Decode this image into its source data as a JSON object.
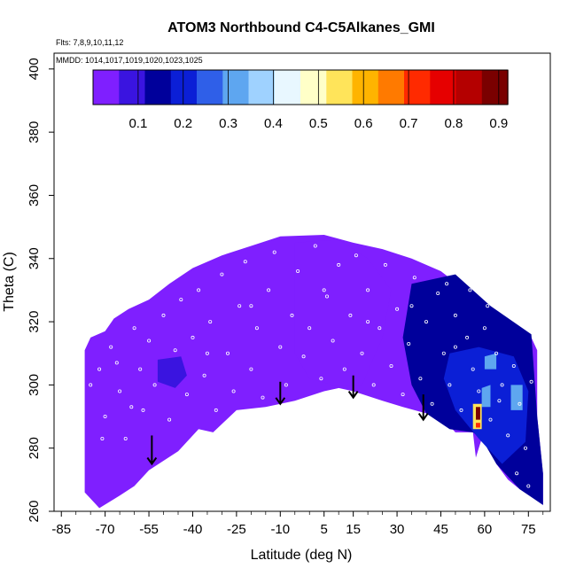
{
  "chart_data": {
    "type": "heatmap",
    "title": "ATOM3 Northbound C4-C5Alkanes_GMI",
    "flights_label": "Flts: 7,8,9,10,11,12",
    "dates_label": "MMDD: 1014,1017,1019,1020,1023,1025",
    "xlabel": "Latitude (deg N)",
    "ylabel": "Theta (C)",
    "xlim": [
      -87.5,
      82.5
    ],
    "ylim": [
      260,
      405
    ],
    "x_ticks": [
      -85,
      -70,
      -55,
      -40,
      -25,
      -10,
      5,
      15,
      30,
      45,
      60,
      75
    ],
    "x_tick_labels": [
      "-85",
      "-70",
      "-55",
      "-40",
      "-25",
      "-10",
      "5",
      "15",
      "30",
      "45",
      "60",
      "75"
    ],
    "y_ticks": [
      260,
      280,
      300,
      320,
      340,
      360,
      380,
      400
    ],
    "y_tick_labels": [
      "260",
      "280",
      "300",
      "320",
      "340",
      "360",
      "380",
      "400"
    ],
    "colorbar": {
      "range": [
        0,
        0.92
      ],
      "ticks": [
        0.1,
        0.2,
        0.3,
        0.4,
        0.5,
        0.6,
        0.7,
        0.8,
        0.9
      ],
      "tick_labels": [
        "0.1",
        "0.2",
        "0.3",
        "0.4",
        "0.5",
        "0.6",
        "0.7",
        "0.8",
        "0.9"
      ],
      "colors": [
        "#7f1fff",
        "#3a14e0",
        "#00009b",
        "#0b1fd6",
        "#2f5fe8",
        "#5ea6f0",
        "#9fd2ff",
        "#e8f7ff",
        "#ffffc8",
        "#ffe45a",
        "#ffb400",
        "#ff7a00",
        "#ff2a00",
        "#e60000",
        "#b40000",
        "#7a0000"
      ]
    },
    "field_upper_boundary": [
      [
        -77,
        311
      ],
      [
        -75,
        315
      ],
      [
        -70,
        317
      ],
      [
        -67,
        321
      ],
      [
        -62,
        324
      ],
      [
        -55,
        327
      ],
      [
        -48,
        332
      ],
      [
        -40,
        337
      ],
      [
        -30,
        341
      ],
      [
        -20,
        344
      ],
      [
        -10,
        347
      ],
      [
        5,
        347.5
      ],
      [
        15,
        345
      ],
      [
        25,
        343
      ],
      [
        35,
        340
      ],
      [
        45,
        336
      ],
      [
        52,
        331
      ],
      [
        56,
        326
      ],
      [
        64,
        322
      ],
      [
        70,
        318
      ],
      [
        76,
        315
      ],
      [
        78,
        311
      ],
      [
        78,
        290
      ],
      [
        80,
        272
      ],
      [
        80,
        262
      ],
      [
        77,
        264
      ],
      [
        72,
        267
      ],
      [
        68,
        270
      ],
      [
        64,
        275
      ],
      [
        61,
        281
      ],
      [
        59,
        283
      ],
      [
        57,
        277
      ],
      [
        56,
        285
      ],
      [
        50,
        285
      ],
      [
        45,
        290
      ],
      [
        40,
        291
      ],
      [
        32,
        293
      ],
      [
        25,
        295
      ],
      [
        15,
        298
      ],
      [
        10,
        299
      ],
      [
        5,
        298
      ],
      [
        -5,
        295
      ],
      [
        -15,
        293
      ],
      [
        -25,
        292
      ],
      [
        -33,
        285
      ],
      [
        -38,
        286
      ],
      [
        -45,
        279
      ],
      [
        -55,
        273
      ],
      [
        -60,
        268
      ],
      [
        -65,
        265
      ],
      [
        -72,
        261
      ],
      [
        -74,
        263
      ],
      [
        -77,
        266
      ]
    ],
    "regions": [
      {
        "label": "background",
        "value": 0.02,
        "outline": [
          [
            -77,
            311
          ],
          [
            -75,
            315
          ],
          [
            -70,
            317
          ],
          [
            -67,
            321
          ],
          [
            -62,
            324
          ],
          [
            -55,
            327
          ],
          [
            -48,
            332
          ],
          [
            -40,
            337
          ],
          [
            -30,
            341
          ],
          [
            -20,
            344
          ],
          [
            -10,
            347
          ],
          [
            5,
            347.5
          ],
          [
            15,
            345
          ],
          [
            25,
            343
          ],
          [
            35,
            340
          ],
          [
            45,
            336
          ],
          [
            52,
            331
          ],
          [
            56,
            326
          ],
          [
            64,
            322
          ],
          [
            70,
            318
          ],
          [
            76,
            315
          ],
          [
            78,
            311
          ],
          [
            78,
            290
          ],
          [
            80,
            272
          ],
          [
            80,
            262
          ],
          [
            77,
            264
          ],
          [
            72,
            267
          ],
          [
            68,
            270
          ],
          [
            64,
            275
          ],
          [
            61,
            281
          ],
          [
            59,
            283
          ],
          [
            57,
            277
          ],
          [
            56,
            285
          ],
          [
            50,
            285
          ],
          [
            45,
            290
          ],
          [
            40,
            291
          ],
          [
            32,
            293
          ],
          [
            25,
            295
          ],
          [
            15,
            298
          ],
          [
            10,
            299
          ],
          [
            5,
            298
          ],
          [
            -5,
            295
          ],
          [
            -15,
            293
          ],
          [
            -25,
            292
          ],
          [
            -33,
            285
          ],
          [
            -38,
            286
          ],
          [
            -45,
            279
          ],
          [
            -55,
            273
          ],
          [
            -60,
            268
          ],
          [
            -65,
            265
          ],
          [
            -72,
            261
          ],
          [
            -74,
            263
          ],
          [
            -77,
            266
          ]
        ]
      },
      {
        "label": "center-dark-band",
        "value": 0.05,
        "outline": [
          [
            -5,
            345
          ],
          [
            10,
            346
          ],
          [
            20,
            340
          ],
          [
            28,
            330
          ],
          [
            25,
            315
          ],
          [
            18,
            300
          ],
          [
            8,
            300
          ],
          [
            0,
            302
          ],
          [
            -5,
            310
          ]
        ]
      },
      {
        "label": "south-patch",
        "value": 0.06,
        "outline": [
          [
            -52,
            308
          ],
          [
            -44,
            309
          ],
          [
            -42,
            303
          ],
          [
            -46,
            299
          ],
          [
            -52,
            301
          ]
        ]
      },
      {
        "label": "east-blue",
        "value": 0.12,
        "outline": [
          [
            35,
            332
          ],
          [
            50,
            335
          ],
          [
            62,
            325
          ],
          [
            76,
            316
          ],
          [
            78,
            290
          ],
          [
            80,
            272
          ],
          [
            80,
            262
          ],
          [
            72,
            267
          ],
          [
            64,
            275
          ],
          [
            59,
            283
          ],
          [
            56,
            285
          ],
          [
            48,
            286
          ],
          [
            40,
            291
          ],
          [
            35,
            300
          ],
          [
            32,
            315
          ]
        ]
      },
      {
        "label": "east-bright-blue",
        "value": 0.22,
        "outline": [
          [
            48,
            310
          ],
          [
            58,
            312
          ],
          [
            70,
            309
          ],
          [
            75,
            298
          ],
          [
            74,
            282
          ],
          [
            66,
            275
          ],
          [
            58,
            283
          ],
          [
            50,
            292
          ],
          [
            46,
            302
          ]
        ]
      },
      {
        "label": "east-light-1",
        "value": 0.32,
        "outline": [
          [
            60,
            309
          ],
          [
            64,
            310
          ],
          [
            64,
            305
          ],
          [
            60,
            305
          ]
        ]
      },
      {
        "label": "east-light-2",
        "value": 0.34,
        "outline": [
          [
            59,
            299
          ],
          [
            62,
            300
          ],
          [
            62,
            293
          ],
          [
            59,
            293
          ]
        ]
      },
      {
        "label": "east-light-3",
        "value": 0.3,
        "outline": [
          [
            69,
            300
          ],
          [
            73,
            300
          ],
          [
            73,
            292
          ],
          [
            69,
            292
          ]
        ]
      },
      {
        "label": "hotspot-yellow",
        "value": 0.55,
        "outline": [
          [
            56,
            294
          ],
          [
            59,
            294
          ],
          [
            59,
            286
          ],
          [
            56,
            286
          ]
        ]
      },
      {
        "label": "hotspot-red",
        "value": 0.88,
        "outline": [
          [
            57,
            293
          ],
          [
            58.5,
            293
          ],
          [
            58.5,
            289
          ],
          [
            57,
            289
          ]
        ]
      },
      {
        "label": "hotspot-orange",
        "value": 0.72,
        "outline": [
          [
            57,
            288
          ],
          [
            58.5,
            288
          ],
          [
            58.5,
            286.5
          ],
          [
            57,
            286.5
          ]
        ]
      }
    ],
    "arrows": [
      [
        -54,
        284,
        275
      ],
      [
        -10,
        301,
        294
      ],
      [
        15,
        303,
        296
      ],
      [
        39,
        297,
        289
      ]
    ],
    "sample_points": [
      [
        -72,
        305
      ],
      [
        -70,
        290
      ],
      [
        -68,
        312
      ],
      [
        -65,
        298
      ],
      [
        -63,
        283
      ],
      [
        -60,
        318
      ],
      [
        -58,
        305
      ],
      [
        -57,
        292
      ],
      [
        -55,
        314
      ],
      [
        -53,
        300
      ],
      [
        -50,
        322
      ],
      [
        -48,
        289
      ],
      [
        -46,
        311
      ],
      [
        -44,
        327
      ],
      [
        -42,
        297
      ],
      [
        -40,
        315
      ],
      [
        -38,
        330
      ],
      [
        -36,
        303
      ],
      [
        -34,
        320
      ],
      [
        -32,
        292
      ],
      [
        -30,
        335
      ],
      [
        -28,
        310
      ],
      [
        -26,
        298
      ],
      [
        -24,
        325
      ],
      [
        -22,
        339
      ],
      [
        -20,
        305
      ],
      [
        -18,
        318
      ],
      [
        -16,
        296
      ],
      [
        -14,
        330
      ],
      [
        -12,
        342
      ],
      [
        -10,
        312
      ],
      [
        -8,
        300
      ],
      [
        -6,
        322
      ],
      [
        -4,
        336
      ],
      [
        -2,
        309
      ],
      [
        0,
        318
      ],
      [
        2,
        344
      ],
      [
        4,
        302
      ],
      [
        6,
        328
      ],
      [
        8,
        314
      ],
      [
        10,
        338
      ],
      [
        12,
        305
      ],
      [
        14,
        322
      ],
      [
        16,
        341
      ],
      [
        18,
        310
      ],
      [
        20,
        330
      ],
      [
        22,
        300
      ],
      [
        24,
        318
      ],
      [
        26,
        338
      ],
      [
        28,
        306
      ],
      [
        30,
        324
      ],
      [
        32,
        297
      ],
      [
        34,
        313
      ],
      [
        36,
        334
      ],
      [
        38,
        302
      ],
      [
        40,
        320
      ],
      [
        42,
        294
      ],
      [
        44,
        329
      ],
      [
        46,
        310
      ],
      [
        48,
        300
      ],
      [
        50,
        322
      ],
      [
        52,
        292
      ],
      [
        54,
        315
      ],
      [
        56,
        305
      ],
      [
        58,
        298
      ],
      [
        60,
        318
      ],
      [
        62,
        289
      ],
      [
        64,
        310
      ],
      [
        66,
        300
      ],
      [
        68,
        284
      ],
      [
        70,
        306
      ],
      [
        72,
        294
      ],
      [
        74,
        280
      ],
      [
        76,
        301
      ],
      [
        61,
        325
      ],
      [
        55,
        330
      ],
      [
        47,
        332
      ],
      [
        -75,
        300
      ],
      [
        -71,
        283
      ],
      [
        -66,
        307
      ],
      [
        -61,
        293
      ],
      [
        -35,
        310
      ],
      [
        -20,
        325
      ],
      [
        5,
        330
      ],
      [
        20,
        320
      ],
      [
        35,
        325
      ],
      [
        50,
        312
      ],
      [
        65,
        295
      ],
      [
        71,
        272
      ],
      [
        75,
        268
      ]
    ]
  }
}
